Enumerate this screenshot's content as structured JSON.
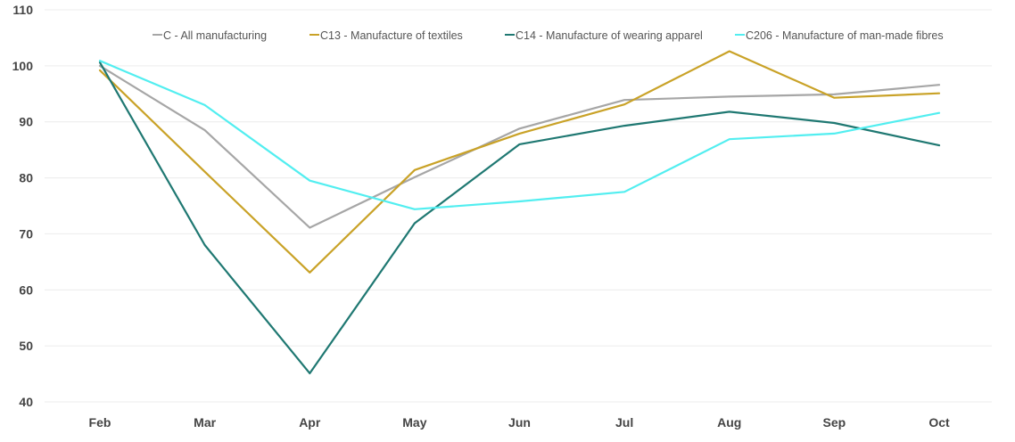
{
  "chart_data": {
    "type": "line",
    "title": "",
    "xlabel": "",
    "ylabel": "",
    "categories": [
      "Feb",
      "Mar",
      "Apr",
      "May",
      "Jun",
      "Jul",
      "Aug",
      "Sep",
      "Oct"
    ],
    "ylim": [
      40,
      110
    ],
    "yticks": [
      "40",
      "50",
      "60",
      "70",
      "80",
      "90",
      "100",
      "110"
    ],
    "grid": "horizontal",
    "legend_position": "top",
    "series": [
      {
        "name": "C - All manufacturing",
        "color": "#a6a6a6",
        "values": [
          100.0,
          88.5,
          71.1,
          80.1,
          88.8,
          93.9,
          94.5,
          94.9,
          96.6
        ]
      },
      {
        "name": "C13 - Manufacture of textiles",
        "color": "#c9a227",
        "values": [
          99.2,
          81.1,
          63.1,
          81.4,
          87.9,
          93.1,
          102.6,
          94.3,
          95.1
        ]
      },
      {
        "name": "C14 - Manufacture of wearing apparel",
        "color": "#1f7872",
        "values": [
          100.6,
          68.0,
          45.1,
          71.9,
          86.0,
          89.3,
          91.8,
          89.8,
          85.8
        ]
      },
      {
        "name": "C206 - Manufacture of man-made fibres",
        "color": "#52eef0",
        "values": [
          100.9,
          93.0,
          79.5,
          74.4,
          75.8,
          77.5,
          86.9,
          87.9,
          91.6
        ]
      }
    ]
  }
}
